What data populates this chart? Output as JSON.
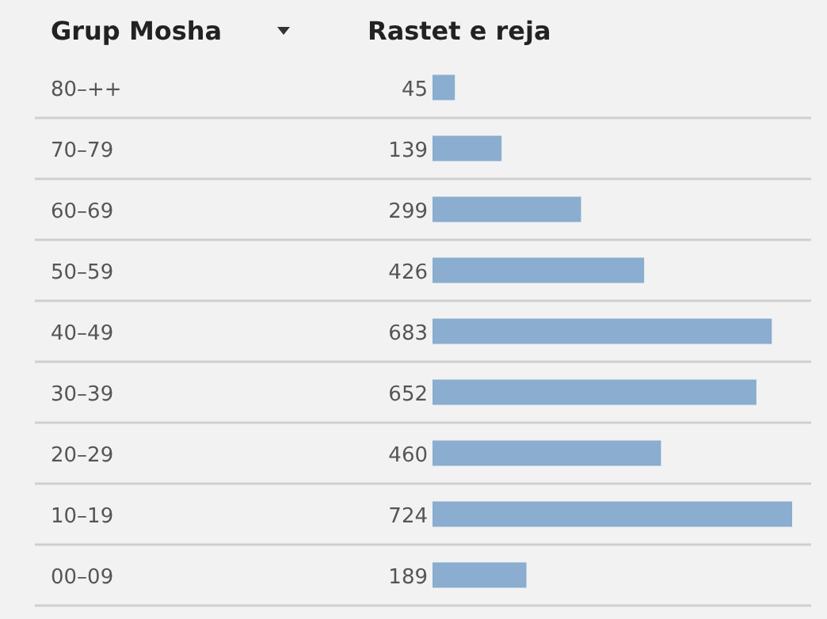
{
  "chart_data": {
    "type": "bar",
    "orientation": "horizontal",
    "ylabel": "Grup Mosha",
    "xlabel": "Rastet e reja",
    "categories": [
      "80–++",
      "70–79",
      "60–69",
      "50–59",
      "40–49",
      "30–39",
      "20–29",
      "10–19",
      "00–09"
    ],
    "values": [
      45,
      139,
      299,
      426,
      683,
      652,
      460,
      724,
      189
    ],
    "color": "#8aadd0",
    "data_labels": true
  }
}
